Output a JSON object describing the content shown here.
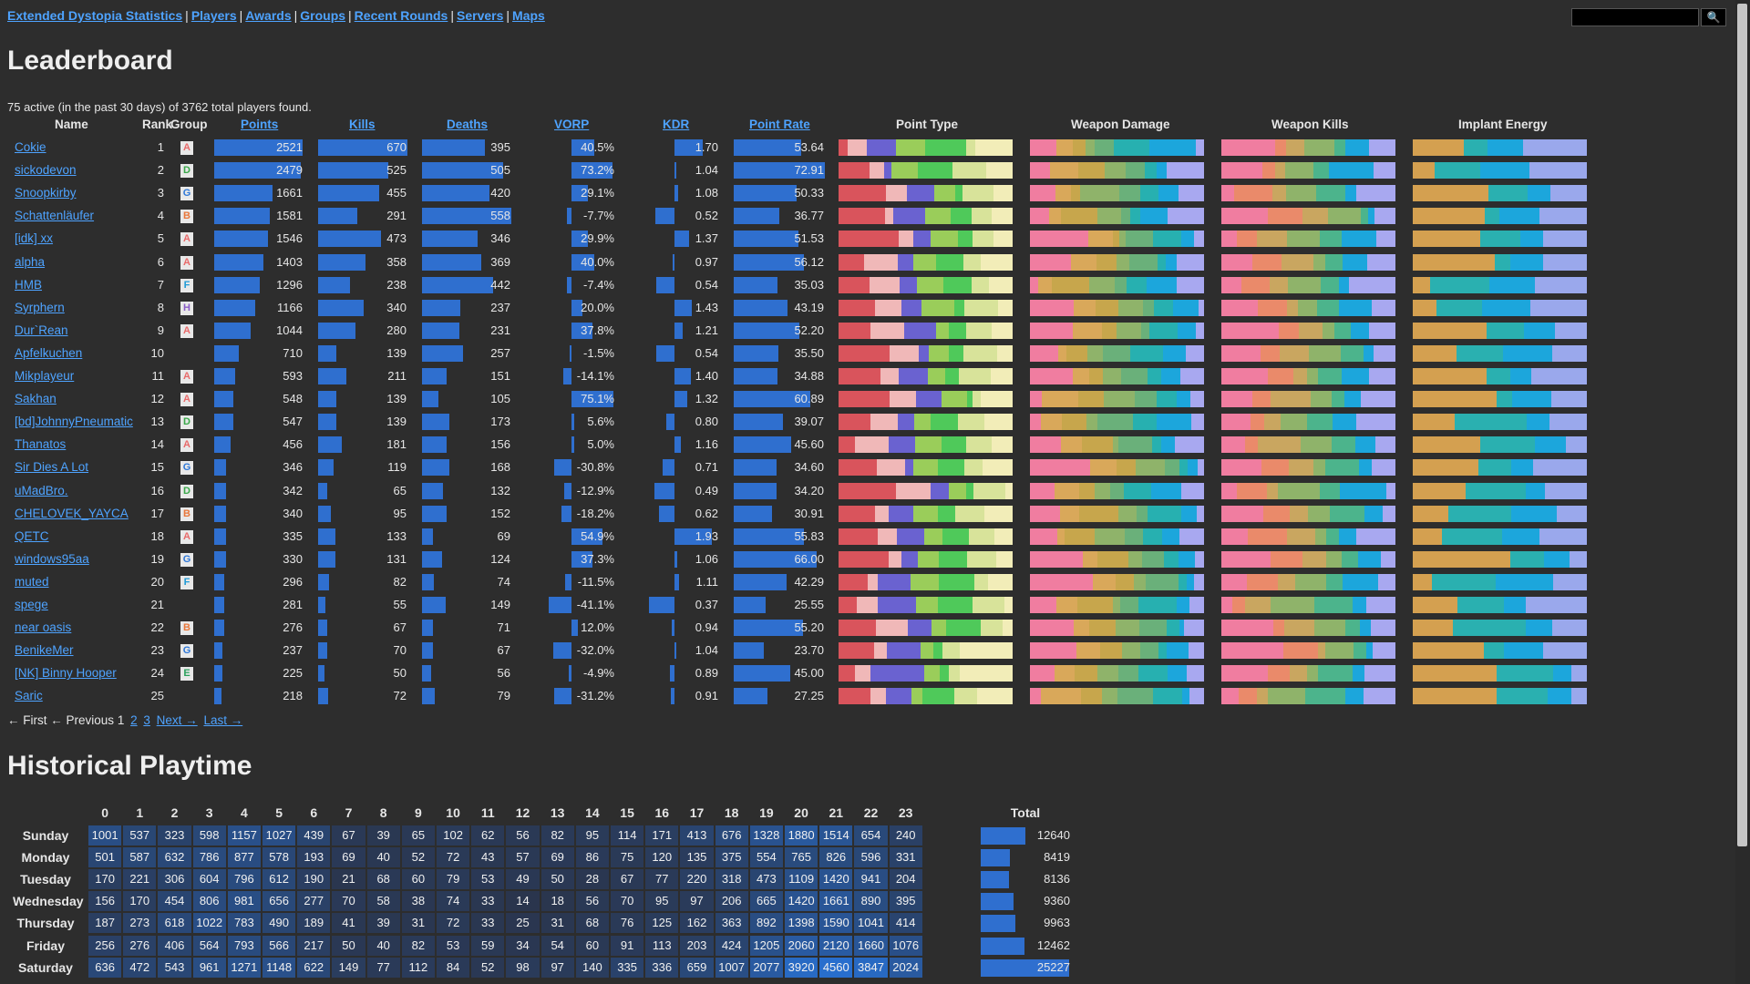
{
  "nav": {
    "links": [
      "Extended Dystopia Statistics",
      "Players",
      "Awards",
      "Groups",
      "Recent Rounds",
      "Servers",
      "Maps"
    ],
    "search_button": "🔍"
  },
  "leaderboard": {
    "title": "Leaderboard",
    "summary": "75 active (in the past 30 days) of 3762 total players found.",
    "headers": {
      "name": "Name",
      "rank": "Rank",
      "group": "Group",
      "points": "Points",
      "kills": "Kills",
      "deaths": "Deaths",
      "vorp": "VORP",
      "kdr": "KDR",
      "point_rate": "Point Rate",
      "point_type": "Point Type",
      "weapon_damage": "Weapon Damage",
      "weapon_kills": "Weapon Kills",
      "implant_energy": "Implant Energy"
    },
    "group_colors": {
      "A": "#e86a6a",
      "D": "#3aa84a",
      "G": "#2f78d8",
      "B": "#e9773a",
      "F": "#1f9ad6",
      "H": "#8a5cc7",
      "E": "#2aa05c"
    },
    "max": {
      "points": 2521,
      "kills": 670,
      "deaths": 558,
      "vorp": 75.1,
      "kdr": 1.93,
      "rate": 72.91
    },
    "rows": [
      {
        "name": "Cokie",
        "rank": "1",
        "group": "A",
        "points": "2521",
        "kills": "670",
        "deaths": "395",
        "vorp": "40.5%",
        "kdr": "1.70",
        "rate": "53.64"
      },
      {
        "name": "sickodevon",
        "rank": "2",
        "group": "D",
        "points": "2479",
        "kills": "525",
        "deaths": "505",
        "vorp": "73.2%",
        "kdr": "1.04",
        "rate": "72.91"
      },
      {
        "name": "Snoopkirby",
        "rank": "3",
        "group": "G",
        "points": "1661",
        "kills": "455",
        "deaths": "420",
        "vorp": "29.1%",
        "kdr": "1.08",
        "rate": "50.33"
      },
      {
        "name": "Schattenläufer",
        "rank": "4",
        "group": "B",
        "points": "1581",
        "kills": "291",
        "deaths": "558",
        "vorp": "-7.7%",
        "kdr": "0.52",
        "rate": "36.77"
      },
      {
        "name": "[idk] xx",
        "rank": "5",
        "group": "A",
        "points": "1546",
        "kills": "473",
        "deaths": "346",
        "vorp": "29.9%",
        "kdr": "1.37",
        "rate": "51.53"
      },
      {
        "name": "alpha",
        "rank": "6",
        "group": "A",
        "points": "1403",
        "kills": "358",
        "deaths": "369",
        "vorp": "40.0%",
        "kdr": "0.97",
        "rate": "56.12"
      },
      {
        "name": "HMB",
        "rank": "7",
        "group": "F",
        "points": "1296",
        "kills": "238",
        "deaths": "442",
        "vorp": "-7.4%",
        "kdr": "0.54",
        "rate": "35.03"
      },
      {
        "name": "Syrphern",
        "rank": "8",
        "group": "H",
        "points": "1166",
        "kills": "340",
        "deaths": "237",
        "vorp": "20.0%",
        "kdr": "1.43",
        "rate": "43.19"
      },
      {
        "name": "Dur`Rean",
        "rank": "9",
        "group": "A",
        "points": "1044",
        "kills": "280",
        "deaths": "231",
        "vorp": "37.8%",
        "kdr": "1.21",
        "rate": "52.20"
      },
      {
        "name": "Apfelkuchen",
        "rank": "10",
        "group": "",
        "points": "710",
        "kills": "139",
        "deaths": "257",
        "vorp": "-1.5%",
        "kdr": "0.54",
        "rate": "35.50"
      },
      {
        "name": "Mikplayeur",
        "rank": "11",
        "group": "A",
        "points": "593",
        "kills": "211",
        "deaths": "151",
        "vorp": "-14.1%",
        "kdr": "1.40",
        "rate": "34.88"
      },
      {
        "name": "Sakhan",
        "rank": "12",
        "group": "A",
        "points": "548",
        "kills": "139",
        "deaths": "105",
        "vorp": "75.1%",
        "kdr": "1.32",
        "rate": "60.89"
      },
      {
        "name": "[bd]JohnnyPneumatic",
        "rank": "13",
        "group": "D",
        "points": "547",
        "kills": "139",
        "deaths": "173",
        "vorp": "5.6%",
        "kdr": "0.80",
        "rate": "39.07"
      },
      {
        "name": "Thanatos",
        "rank": "14",
        "group": "A",
        "points": "456",
        "kills": "181",
        "deaths": "156",
        "vorp": "5.0%",
        "kdr": "1.16",
        "rate": "45.60"
      },
      {
        "name": "Sir Dies A Lot",
        "rank": "15",
        "group": "G",
        "points": "346",
        "kills": "119",
        "deaths": "168",
        "vorp": "-30.8%",
        "kdr": "0.71",
        "rate": "34.60"
      },
      {
        "name": "uMadBro.",
        "rank": "16",
        "group": "D",
        "points": "342",
        "kills": "65",
        "deaths": "132",
        "vorp": "-12.9%",
        "kdr": "0.49",
        "rate": "34.20"
      },
      {
        "name": "CHELOVEK_YAYCA",
        "rank": "17",
        "group": "B",
        "points": "340",
        "kills": "95",
        "deaths": "152",
        "vorp": "-18.2%",
        "kdr": "0.62",
        "rate": "30.91"
      },
      {
        "name": "QETC",
        "rank": "18",
        "group": "A",
        "points": "335",
        "kills": "133",
        "deaths": "69",
        "vorp": "54.9%",
        "kdr": "1.93",
        "rate": "55.83"
      },
      {
        "name": "windows95aa",
        "rank": "19",
        "group": "G",
        "points": "330",
        "kills": "131",
        "deaths": "124",
        "vorp": "37.3%",
        "kdr": "1.06",
        "rate": "66.00"
      },
      {
        "name": "muted",
        "rank": "20",
        "group": "F",
        "points": "296",
        "kills": "82",
        "deaths": "74",
        "vorp": "-11.5%",
        "kdr": "1.11",
        "rate": "42.29"
      },
      {
        "name": "spege",
        "rank": "21",
        "group": "",
        "points": "281",
        "kills": "55",
        "deaths": "149",
        "vorp": "-41.1%",
        "kdr": "0.37",
        "rate": "25.55"
      },
      {
        "name": "near oasis",
        "rank": "22",
        "group": "B",
        "points": "276",
        "kills": "67",
        "deaths": "71",
        "vorp": "12.0%",
        "kdr": "0.94",
        "rate": "55.20"
      },
      {
        "name": "BenikeMer",
        "rank": "23",
        "group": "G",
        "points": "237",
        "kills": "70",
        "deaths": "67",
        "vorp": "-32.0%",
        "kdr": "1.04",
        "rate": "23.70"
      },
      {
        "name": "[NK] Binny Hooper",
        "rank": "24",
        "group": "E",
        "points": "225",
        "kills": "50",
        "deaths": "56",
        "vorp": "-4.9%",
        "kdr": "0.89",
        "rate": "45.00"
      },
      {
        "name": "Saric",
        "rank": "25",
        "group": "",
        "points": "218",
        "kills": "72",
        "deaths": "79",
        "vorp": "-31.2%",
        "kdr": "0.91",
        "rate": "27.25"
      }
    ],
    "stack_colors": {
      "point_type": [
        "#d9545c",
        "#f0b8b8",
        "#6a62d0",
        "#9acd5a",
        "#4fc95a",
        "#d8e39a",
        "#f2edb8"
      ],
      "weapon_damage": [
        "#f07da0",
        "#d9a85a",
        "#c7a64c",
        "#8fb36a",
        "#6ab07a",
        "#27b0b0",
        "#1ca6dc",
        "#a8a8f0"
      ],
      "weapon_kills": [
        "#f07da0",
        "#ea8a6a",
        "#c9a660",
        "#8fb36a",
        "#4cb48c",
        "#1ca6dc",
        "#a8a8f0"
      ],
      "implant_energy": [
        "#d4a050",
        "#2ab0b0",
        "#1ca6dc",
        "#9aa8ec"
      ]
    }
  },
  "pager": {
    "first": "← First",
    "previous": "← Previous",
    "pages": [
      "1",
      "2",
      "3"
    ],
    "next": "Next →",
    "last": "Last →"
  },
  "playtime": {
    "title": "Historical Playtime",
    "hours": [
      "0",
      "1",
      "2",
      "3",
      "4",
      "5",
      "6",
      "7",
      "8",
      "9",
      "10",
      "11",
      "12",
      "13",
      "14",
      "15",
      "16",
      "17",
      "18",
      "19",
      "20",
      "21",
      "22",
      "23"
    ],
    "total_label": "Total",
    "days": [
      {
        "day": "Sunday",
        "values": [
          1001,
          537,
          323,
          598,
          1157,
          1027,
          439,
          67,
          39,
          65,
          102,
          62,
          56,
          82,
          95,
          114,
          171,
          413,
          676,
          1328,
          1880,
          1514,
          654,
          240
        ],
        "total": "12640"
      },
      {
        "day": "Monday",
        "values": [
          501,
          587,
          632,
          786,
          877,
          578,
          193,
          69,
          40,
          52,
          72,
          43,
          57,
          69,
          86,
          75,
          120,
          135,
          375,
          554,
          765,
          826,
          596,
          331
        ],
        "total": "8419"
      },
      {
        "day": "Tuesday",
        "values": [
          170,
          221,
          306,
          604,
          796,
          612,
          190,
          21,
          68,
          60,
          79,
          53,
          49,
          50,
          28,
          67,
          77,
          220,
          318,
          473,
          1109,
          1420,
          941,
          204
        ],
        "total": "8136"
      },
      {
        "day": "Wednesday",
        "values": [
          156,
          170,
          454,
          806,
          981,
          656,
          277,
          70,
          58,
          38,
          74,
          33,
          14,
          18,
          56,
          70,
          95,
          97,
          206,
          665,
          1420,
          1661,
          890,
          395
        ],
        "total": "9360"
      },
      {
        "day": "Thursday",
        "values": [
          187,
          273,
          618,
          1022,
          783,
          490,
          189,
          41,
          39,
          31,
          72,
          33,
          25,
          31,
          68,
          76,
          125,
          162,
          363,
          892,
          1398,
          1590,
          1041,
          414
        ],
        "total": "9963"
      },
      {
        "day": "Friday",
        "values": [
          256,
          276,
          406,
          564,
          793,
          566,
          217,
          50,
          40,
          82,
          53,
          59,
          34,
          54,
          60,
          91,
          113,
          203,
          424,
          1205,
          2060,
          2120,
          1660,
          1076
        ],
        "total": "12462"
      },
      {
        "day": "Saturday",
        "values": [
          636,
          472,
          543,
          961,
          1271,
          1148,
          622,
          149,
          77,
          112,
          84,
          52,
          98,
          97,
          140,
          335,
          336,
          659,
          1007,
          2077,
          3920,
          4560,
          3847,
          2024
        ],
        "total": "25227"
      }
    ]
  }
}
